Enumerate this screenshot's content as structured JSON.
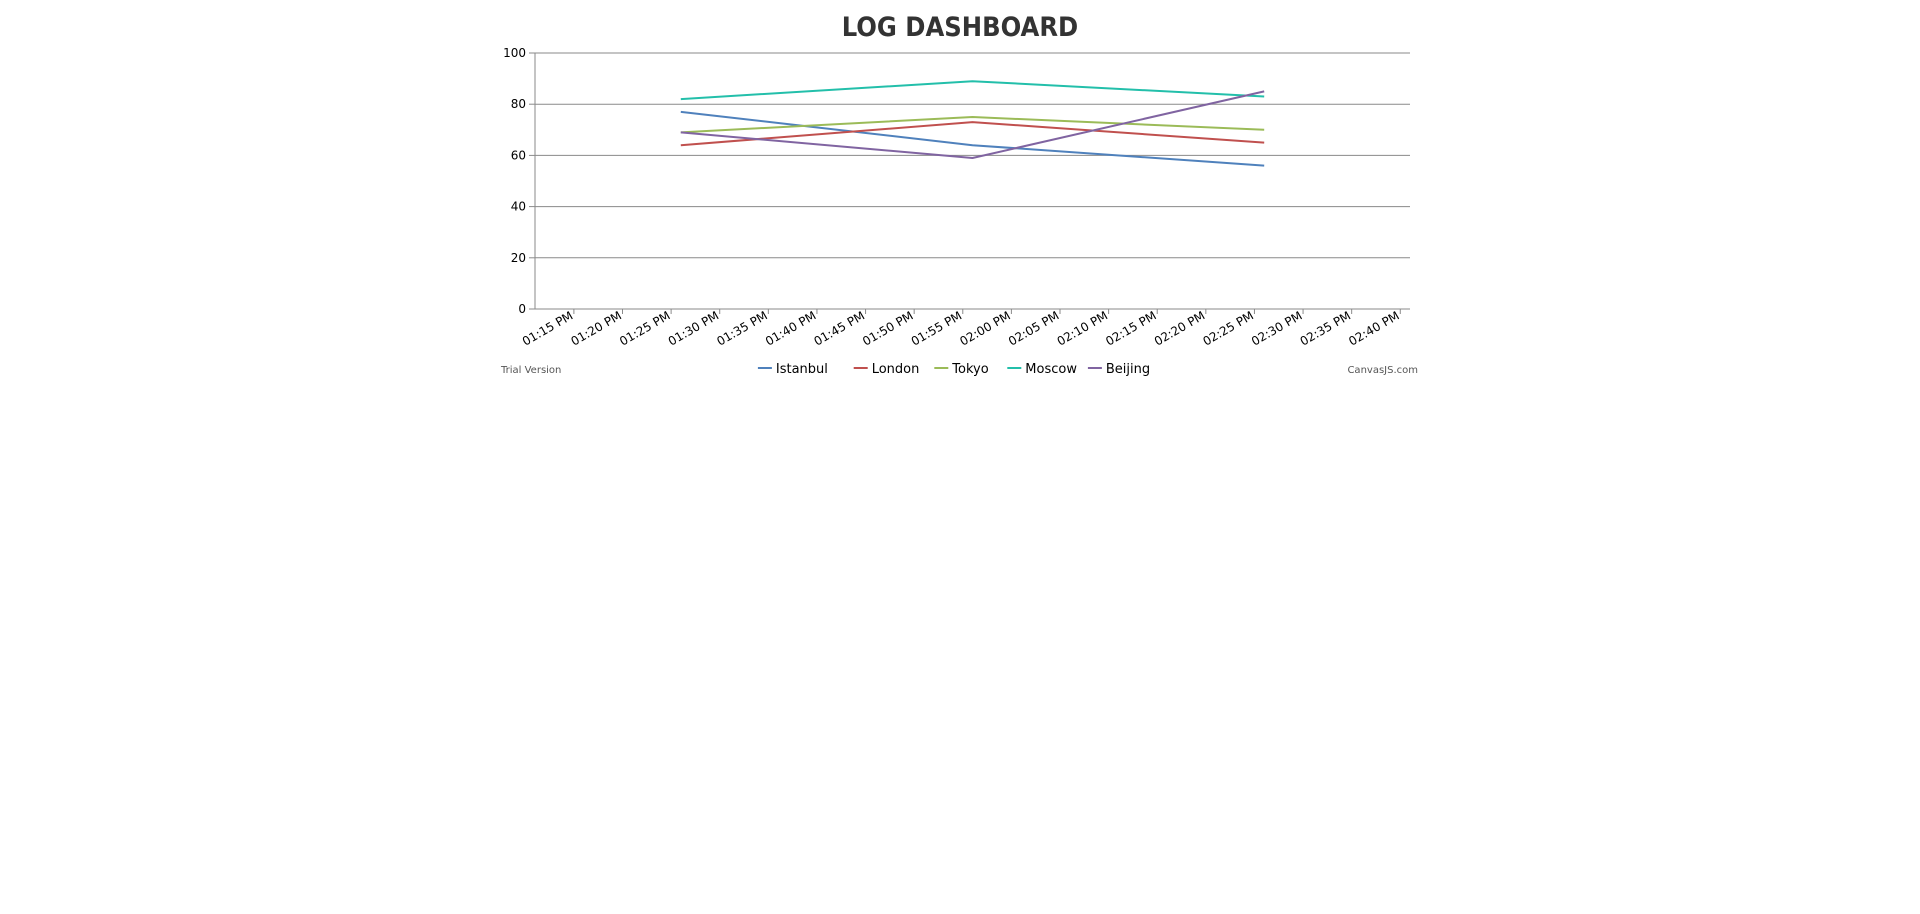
{
  "chart_data": {
    "type": "line",
    "title": "LOG DASHBOARD",
    "xlabel": "",
    "ylabel": "",
    "ylim": [
      0,
      100
    ],
    "y_ticks": [
      0,
      20,
      40,
      60,
      80,
      100
    ],
    "x_ticks": [
      "01:15 PM",
      "01:20 PM",
      "01:25 PM",
      "01:30 PM",
      "01:35 PM",
      "01:40 PM",
      "01:45 PM",
      "01:50 PM",
      "01:55 PM",
      "02:00 PM",
      "02:05 PM",
      "02:10 PM",
      "02:15 PM",
      "02:20 PM",
      "02:25 PM",
      "02:30 PM",
      "02:35 PM",
      "02:40 PM"
    ],
    "x": [
      "01:26 PM",
      "01:56 PM",
      "02:26 PM"
    ],
    "grid": true,
    "legend_position": "bottom-center",
    "series": [
      {
        "name": "Istanbul",
        "color": "#4f81bc",
        "values": [
          77,
          64,
          56
        ]
      },
      {
        "name": "London",
        "color": "#c0504e",
        "values": [
          64,
          73,
          65
        ]
      },
      {
        "name": "Tokyo",
        "color": "#9bbb58",
        "values": [
          69,
          75,
          70
        ]
      },
      {
        "name": "Moscow",
        "color": "#23bfaa",
        "values": [
          82,
          89,
          83
        ]
      },
      {
        "name": "Beijing",
        "color": "#8064a1",
        "values": [
          69,
          59,
          85
        ]
      }
    ]
  },
  "credits": {
    "left": "Trial Version",
    "right": "CanvasJS.com"
  }
}
